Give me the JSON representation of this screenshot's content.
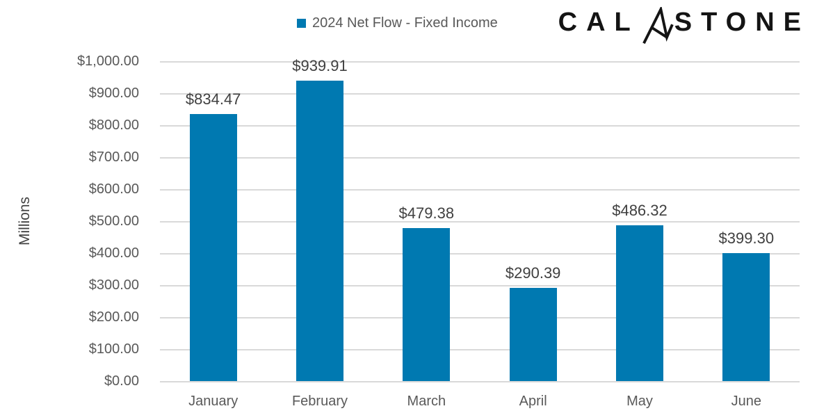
{
  "brand": {
    "name": "CALASTONE",
    "prefix": "CAL",
    "suffix": "STONE",
    "color": "#141414"
  },
  "legend": {
    "label": "2024 Net Flow - Fixed Income",
    "marker_color": "#0079B1"
  },
  "chart_data": {
    "type": "bar",
    "title": "",
    "series_name": "2024 Net Flow - Fixed Income",
    "categories": [
      "January",
      "February",
      "March",
      "April",
      "May",
      "June"
    ],
    "values": [
      834.47,
      939.91,
      479.38,
      290.39,
      486.32,
      399.3
    ],
    "data_labels": [
      "$834.47",
      "$939.91",
      "$479.38",
      "$290.39",
      "$486.32",
      "$399.30"
    ],
    "xlabel": "",
    "ylabel": "Millions",
    "ylim": [
      0,
      1000
    ],
    "ytick_step": 100,
    "ytick_labels": [
      "$0.00",
      "$100.00",
      "$200.00",
      "$300.00",
      "$400.00",
      "$500.00",
      "$600.00",
      "$700.00",
      "$800.00",
      "$900.00",
      "$1,000.00"
    ],
    "grid": true,
    "legend_position": "top-center",
    "bar_color": "#0079B1",
    "gridline_color": "#D9D9D9",
    "axis_label_color": "#595959",
    "data_label_color": "#404040"
  }
}
